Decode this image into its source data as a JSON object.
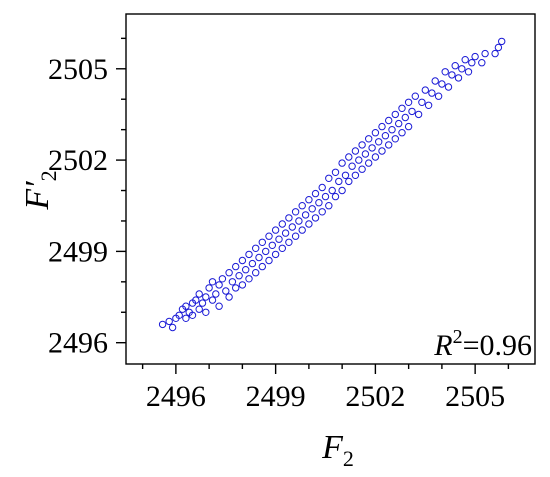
{
  "chart_data": {
    "type": "scatter",
    "xlabel": "F",
    "xlabel_sub": "2",
    "ylabel": "F′",
    "ylabel_sub": "2",
    "xlim": [
      2494.5,
      2506.8
    ],
    "ylim": [
      2495.3,
      2506.8
    ],
    "xticks": [
      2496,
      2499,
      2502,
      2505
    ],
    "yticks": [
      2496,
      2499,
      2502,
      2505
    ],
    "annotation": {
      "r": "R",
      "sup": "2",
      "value": "=0.96"
    },
    "marker": "open-circle",
    "color": "#1a1ad6",
    "series": [
      {
        "points": [
          [
            2495.6,
            2496.6
          ],
          [
            2495.8,
            2496.7
          ],
          [
            2495.9,
            2496.5
          ],
          [
            2496.0,
            2496.8
          ],
          [
            2496.1,
            2496.9
          ],
          [
            2496.2,
            2497.1
          ],
          [
            2496.3,
            2496.8
          ],
          [
            2496.3,
            2497.2
          ],
          [
            2496.4,
            2497.0
          ],
          [
            2496.5,
            2497.3
          ],
          [
            2496.5,
            2496.9
          ],
          [
            2496.6,
            2497.4
          ],
          [
            2496.7,
            2497.1
          ],
          [
            2496.7,
            2497.6
          ],
          [
            2496.8,
            2497.3
          ],
          [
            2496.9,
            2497.5
          ],
          [
            2496.9,
            2497.0
          ],
          [
            2497.0,
            2497.8
          ],
          [
            2497.1,
            2497.4
          ],
          [
            2497.1,
            2498.0
          ],
          [
            2497.2,
            2497.6
          ],
          [
            2497.3,
            2497.9
          ],
          [
            2497.3,
            2497.2
          ],
          [
            2497.4,
            2498.1
          ],
          [
            2497.5,
            2497.7
          ],
          [
            2497.6,
            2498.3
          ],
          [
            2497.6,
            2497.5
          ],
          [
            2497.7,
            2498.0
          ],
          [
            2497.8,
            2498.5
          ],
          [
            2497.8,
            2497.8
          ],
          [
            2497.9,
            2498.2
          ],
          [
            2498.0,
            2498.7
          ],
          [
            2498.0,
            2497.9
          ],
          [
            2498.1,
            2498.4
          ],
          [
            2498.2,
            2498.9
          ],
          [
            2498.2,
            2498.1
          ],
          [
            2498.3,
            2498.6
          ],
          [
            2498.4,
            2499.1
          ],
          [
            2498.4,
            2498.3
          ],
          [
            2498.5,
            2498.8
          ],
          [
            2498.6,
            2499.3
          ],
          [
            2498.6,
            2498.5
          ],
          [
            2498.7,
            2499.0
          ],
          [
            2498.8,
            2499.5
          ],
          [
            2498.8,
            2498.7
          ],
          [
            2498.9,
            2499.2
          ],
          [
            2499.0,
            2499.7
          ],
          [
            2499.0,
            2498.9
          ],
          [
            2499.1,
            2499.4
          ],
          [
            2499.2,
            2499.9
          ],
          [
            2499.2,
            2499.1
          ],
          [
            2499.3,
            2499.6
          ],
          [
            2499.4,
            2500.1
          ],
          [
            2499.4,
            2499.3
          ],
          [
            2499.5,
            2499.8
          ],
          [
            2499.6,
            2500.3
          ],
          [
            2499.6,
            2499.5
          ],
          [
            2499.7,
            2500.0
          ],
          [
            2499.8,
            2500.5
          ],
          [
            2499.8,
            2499.7
          ],
          [
            2499.9,
            2500.2
          ],
          [
            2500.0,
            2500.7
          ],
          [
            2500.0,
            2499.9
          ],
          [
            2500.1,
            2500.4
          ],
          [
            2500.2,
            2500.9
          ],
          [
            2500.2,
            2500.1
          ],
          [
            2500.3,
            2500.6
          ],
          [
            2500.4,
            2501.1
          ],
          [
            2500.4,
            2500.3
          ],
          [
            2500.5,
            2500.8
          ],
          [
            2500.6,
            2501.4
          ],
          [
            2500.6,
            2500.5
          ],
          [
            2500.7,
            2501.0
          ],
          [
            2500.8,
            2501.6
          ],
          [
            2500.8,
            2500.8
          ],
          [
            2500.9,
            2501.3
          ],
          [
            2501.0,
            2501.9
          ],
          [
            2501.0,
            2501.0
          ],
          [
            2501.1,
            2501.5
          ],
          [
            2501.2,
            2502.1
          ],
          [
            2501.2,
            2501.3
          ],
          [
            2501.3,
            2501.8
          ],
          [
            2501.4,
            2502.3
          ],
          [
            2501.4,
            2501.5
          ],
          [
            2501.5,
            2502.0
          ],
          [
            2501.6,
            2502.5
          ],
          [
            2501.6,
            2501.7
          ],
          [
            2501.7,
            2502.2
          ],
          [
            2501.8,
            2502.7
          ],
          [
            2501.8,
            2501.9
          ],
          [
            2501.9,
            2502.4
          ],
          [
            2502.0,
            2502.9
          ],
          [
            2502.0,
            2502.1
          ],
          [
            2502.1,
            2502.6
          ],
          [
            2502.2,
            2503.1
          ],
          [
            2502.2,
            2502.3
          ],
          [
            2502.3,
            2502.8
          ],
          [
            2502.4,
            2503.3
          ],
          [
            2502.4,
            2502.5
          ],
          [
            2502.5,
            2503.0
          ],
          [
            2502.6,
            2503.5
          ],
          [
            2502.6,
            2502.7
          ],
          [
            2502.7,
            2503.2
          ],
          [
            2502.8,
            2503.7
          ],
          [
            2502.8,
            2502.9
          ],
          [
            2502.9,
            2503.4
          ],
          [
            2503.0,
            2503.9
          ],
          [
            2503.0,
            2503.1
          ],
          [
            2503.1,
            2503.6
          ],
          [
            2503.2,
            2504.1
          ],
          [
            2503.3,
            2503.5
          ],
          [
            2503.4,
            2503.9
          ],
          [
            2503.5,
            2504.3
          ],
          [
            2503.6,
            2503.8
          ],
          [
            2503.7,
            2504.2
          ],
          [
            2503.8,
            2504.6
          ],
          [
            2503.9,
            2504.1
          ],
          [
            2504.0,
            2504.5
          ],
          [
            2504.1,
            2504.9
          ],
          [
            2504.2,
            2504.4
          ],
          [
            2504.3,
            2504.8
          ],
          [
            2504.4,
            2505.1
          ],
          [
            2504.5,
            2504.7
          ],
          [
            2504.6,
            2505.0
          ],
          [
            2504.7,
            2505.3
          ],
          [
            2504.8,
            2504.9
          ],
          [
            2504.9,
            2505.2
          ],
          [
            2505.0,
            2505.4
          ],
          [
            2505.2,
            2505.2
          ],
          [
            2505.3,
            2505.5
          ],
          [
            2505.6,
            2505.5
          ],
          [
            2505.7,
            2505.7
          ],
          [
            2505.8,
            2505.9
          ]
        ]
      }
    ]
  }
}
